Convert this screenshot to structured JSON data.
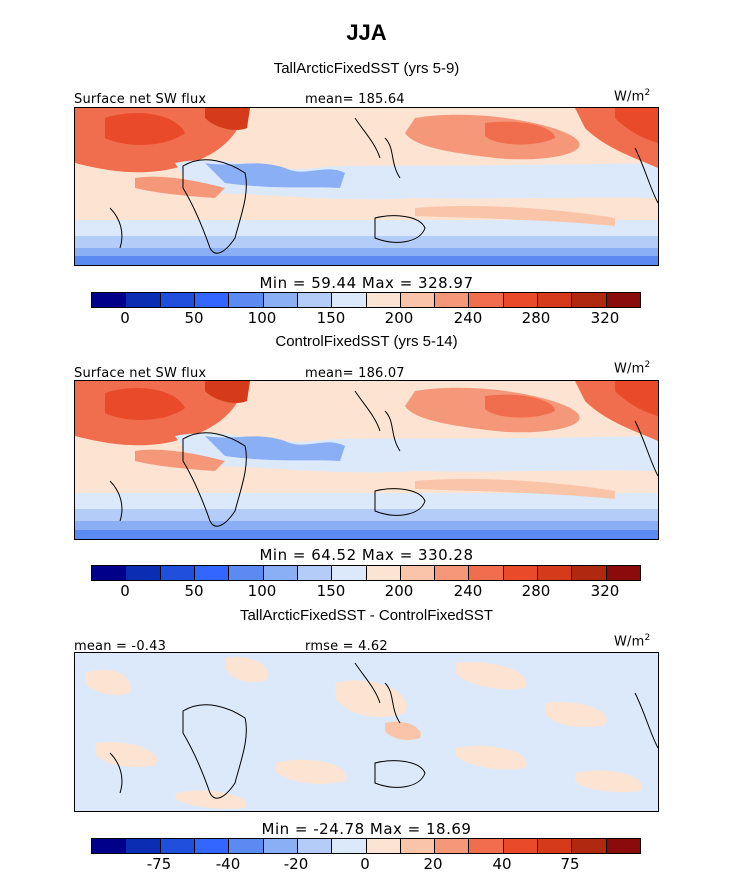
{
  "title": "JJA",
  "panels": [
    {
      "subtitle": "TallArcticFixedSST (yrs 5-9)",
      "left_label": "Surface net SW flux",
      "mid_label": "mean= 185.64",
      "units": "W/m",
      "units_sup": "2",
      "minmax": "Min =  59.44  Max = 328.97",
      "ticks": [
        "0",
        "50",
        "100",
        "150",
        "200",
        "240",
        "280",
        "320"
      ]
    },
    {
      "subtitle": "ControlFixedSST (yrs 5-14)",
      "left_label": "Surface net SW flux",
      "mid_label": "mean= 186.07",
      "units": "W/m",
      "units_sup": "2",
      "minmax": "Min =  64.52  Max = 330.28",
      "ticks": [
        "0",
        "50",
        "100",
        "150",
        "200",
        "240",
        "280",
        "320"
      ]
    },
    {
      "subtitle": "TallArcticFixedSST - ControlFixedSST",
      "left_label": "mean =  -0.43",
      "mid_label": "rmse =  4.62",
      "units": "W/m",
      "units_sup": "2",
      "minmax": "Min = -24.78  Max =  18.69",
      "ticks": [
        "-75",
        "-40",
        "-20",
        "0",
        "20",
        "40",
        "75"
      ]
    }
  ],
  "colors": [
    "#00008b",
    "#0a2db4",
    "#1f4fdc",
    "#3366ff",
    "#5a8af2",
    "#8aaff5",
    "#b4cdf8",
    "#dce9fb",
    "#fde4d2",
    "#fac4a8",
    "#f5987a",
    "#f06e4e",
    "#e84a2a",
    "#d53a1a",
    "#b02810",
    "#8b0a0a"
  ]
}
